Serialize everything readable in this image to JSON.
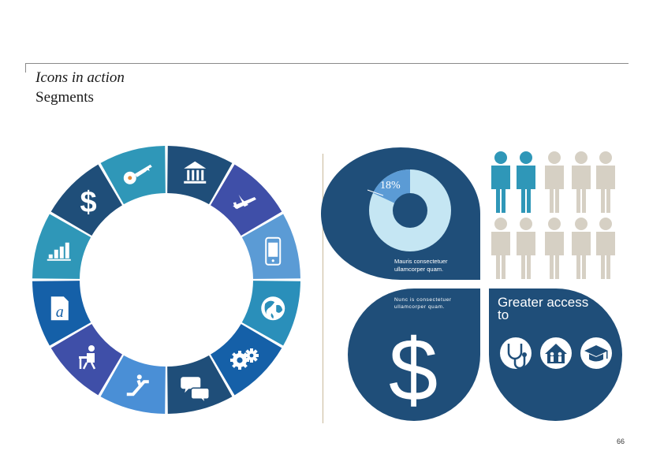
{
  "header": {
    "title": "Icons in action",
    "subtitle": "Segments"
  },
  "infographic": {
    "percent_label": "18%",
    "percent_value": 18,
    "caption_1": "Mauris consectetuer ullamcorper quam.",
    "caption_2": "Nunc is consectetuer ullamcorper quam.",
    "greater_access": "Greater access to",
    "dollar_sign": "$",
    "access_icons": [
      "stethoscope-icon",
      "house-family-icon",
      "graduation-cap-icon"
    ],
    "people_grid": {
      "rows": 2,
      "cols": 5,
      "highlighted_in_top_row": 2
    }
  },
  "ring": {
    "segments": [
      {
        "icon": "bank-icon",
        "color": "#1f4e79"
      },
      {
        "icon": "airplane-icon",
        "color": "#3f4fa8"
      },
      {
        "icon": "mobile-device-icon",
        "color": "#5b9bd5"
      },
      {
        "icon": "globe-icon",
        "color": "#2a8fba"
      },
      {
        "icon": "gears-icon",
        "color": "#1560a8"
      },
      {
        "icon": "chat-bubbles-icon",
        "color": "#1f4e79"
      },
      {
        "icon": "escalator-icon",
        "color": "#4a8fd6"
      },
      {
        "icon": "person-at-desk-icon",
        "color": "#3f4fa8"
      },
      {
        "icon": "document-icon",
        "color": "#1560a8"
      },
      {
        "icon": "bar-chart-icon",
        "color": "#2f97b8"
      },
      {
        "icon": "dollar-icon",
        "color": "#1f4e79"
      },
      {
        "icon": "key-icon",
        "color": "#2f97b8"
      }
    ]
  },
  "colors": {
    "navy": "#1f4e79",
    "light_blue": "#c5e6f3",
    "teal": "#2f97b8",
    "beige": "#d6d0c4",
    "accent_line": "#c8b89a"
  },
  "footer": {
    "page_number": "66"
  }
}
